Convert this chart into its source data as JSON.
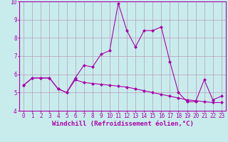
{
  "xlabel": "Windchill (Refroidissement éolien,°C)",
  "background_color": "#c8ecec",
  "line_color": "#aa00aa",
  "grid_color": "#bb99bb",
  "xlim": [
    -0.5,
    23.5
  ],
  "ylim": [
    4,
    10
  ],
  "yticks": [
    4,
    5,
    6,
    7,
    8,
    9,
    10
  ],
  "xticks": [
    0,
    1,
    2,
    3,
    4,
    5,
    6,
    7,
    8,
    9,
    10,
    11,
    12,
    13,
    14,
    15,
    16,
    17,
    18,
    19,
    20,
    21,
    22,
    23
  ],
  "hours": [
    0,
    1,
    2,
    3,
    4,
    5,
    6,
    7,
    8,
    9,
    10,
    11,
    12,
    13,
    14,
    15,
    16,
    17,
    18,
    19,
    20,
    21,
    22,
    23
  ],
  "temperature": [
    5.4,
    5.8,
    5.8,
    5.8,
    5.2,
    5.0,
    5.8,
    6.5,
    6.4,
    7.1,
    7.3,
    9.9,
    8.4,
    7.5,
    8.4,
    8.4,
    8.6,
    6.7,
    5.0,
    4.5,
    4.5,
    5.7,
    4.6,
    4.8
  ],
  "windchill": [
    5.4,
    5.8,
    5.8,
    5.8,
    5.2,
    5.0,
    5.7,
    5.55,
    5.5,
    5.45,
    5.4,
    5.35,
    5.3,
    5.2,
    5.1,
    5.0,
    4.9,
    4.8,
    4.7,
    4.6,
    4.55,
    4.5,
    4.45,
    4.45
  ],
  "tick_fontsize": 5.5,
  "xlabel_fontsize": 6.5
}
